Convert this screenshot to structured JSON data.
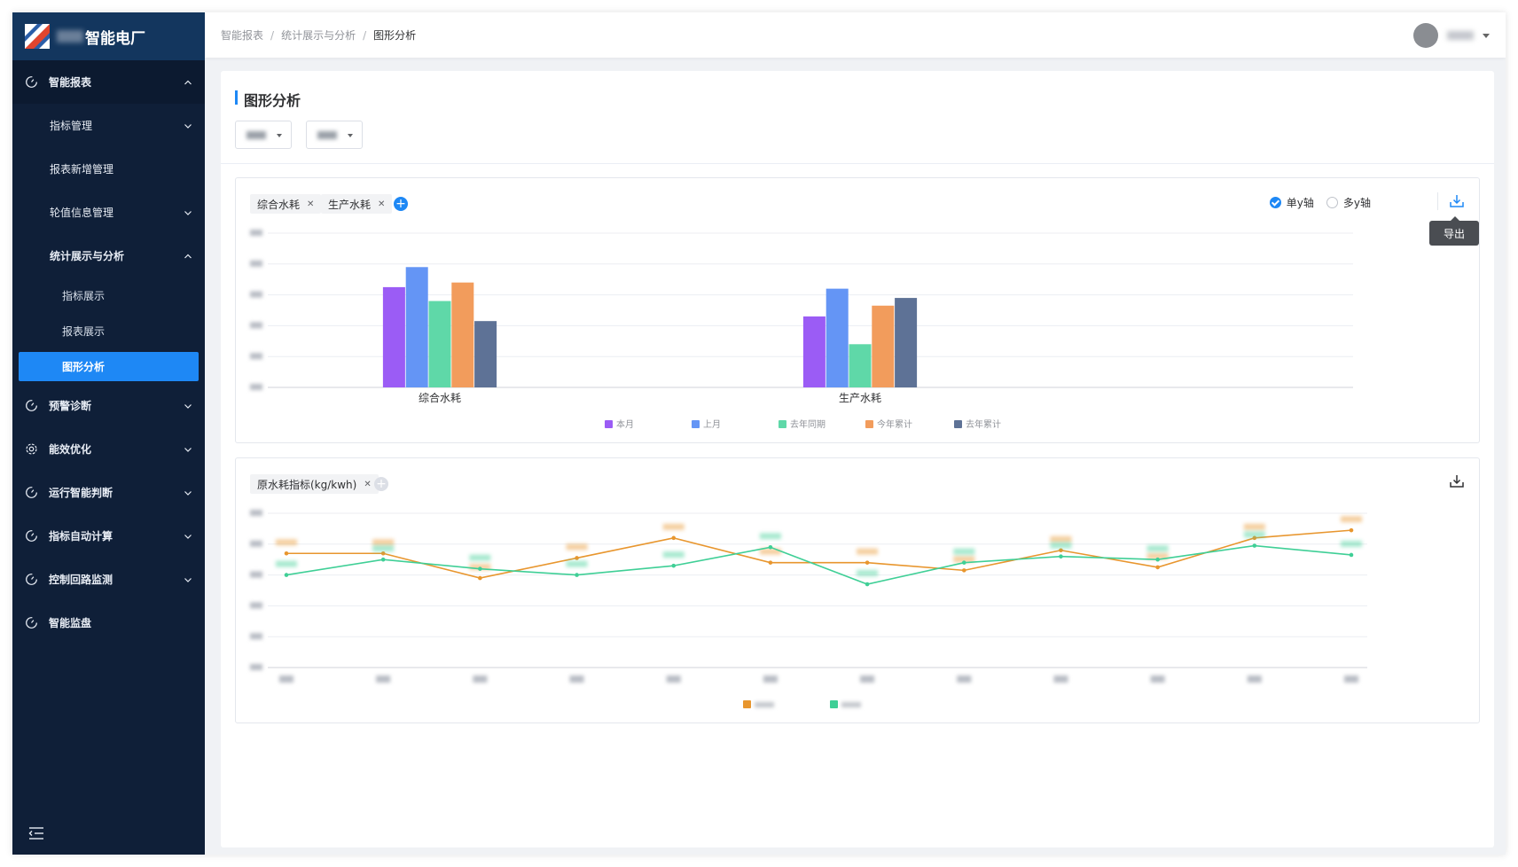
{
  "app": {
    "name": "智能电厂",
    "brand_colors": {
      "sidebar_bg": "#0f1f38",
      "logo_bg": "#13365e",
      "accent": "#1e88f5"
    }
  },
  "sidebar": {
    "groups": [
      {
        "label": "智能报表",
        "icon": "dashboard-gauge-icon",
        "expanded": true
      },
      {
        "label": "预警诊断",
        "icon": "dashboard-gauge-icon",
        "expanded": false
      },
      {
        "label": "能效优化",
        "icon": "gear-icon",
        "expanded": false
      },
      {
        "label": "运行智能判断",
        "icon": "dashboard-gauge-icon",
        "expanded": false
      },
      {
        "label": "指标自动计算",
        "icon": "dashboard-gauge-icon",
        "expanded": false
      },
      {
        "label": "控制回路监测",
        "icon": "dashboard-gauge-icon",
        "expanded": false
      },
      {
        "label": "智能监盘",
        "icon": "dashboard-gauge-icon",
        "expanded": false
      }
    ],
    "sub_items": [
      {
        "label": "指标管理",
        "has_children": true
      },
      {
        "label": "报表新增管理",
        "has_children": false
      },
      {
        "label": "轮值信息管理",
        "has_children": true
      },
      {
        "label": "统计展示与分析",
        "has_children": true,
        "expanded": true
      }
    ],
    "leaf_items": [
      {
        "label": "指标展示",
        "active": false
      },
      {
        "label": "报表展示",
        "active": false
      },
      {
        "label": "图形分析",
        "active": true
      }
    ],
    "collapse_icon": "menu-collapse-icon"
  },
  "header": {
    "breadcrumb": [
      "智能报表",
      "统计展示与分析",
      "图形分析"
    ],
    "user_icon": "avatar"
  },
  "main": {
    "title": "图形分析",
    "filters": [
      {
        "icon": "chevron-down-icon"
      },
      {
        "icon": "chevron-down-icon"
      }
    ],
    "bar_card": {
      "tags": [
        "综合水耗",
        "生产水耗"
      ],
      "axis_mode": {
        "single": "单y轴",
        "multi": "多y轴",
        "selected": "single"
      },
      "export_tooltip": "导出",
      "export_icon": "download-icon"
    },
    "line_card": {
      "tags": [
        "原水耗指标(kg/kwh)"
      ],
      "export_icon": "download-icon"
    }
  },
  "chart_data": [
    {
      "type": "bar",
      "categories": [
        "综合水耗",
        "生产水耗"
      ],
      "series": [
        {
          "name": "本月",
          "color": "#9b5cf5",
          "values": [
            3.25,
            2.3
          ]
        },
        {
          "name": "上月",
          "color": "#6495f5",
          "values": [
            3.9,
            3.2
          ]
        },
        {
          "name": "去年同期",
          "color": "#5fd8a8",
          "values": [
            2.8,
            1.4
          ]
        },
        {
          "name": "今年累计",
          "color": "#f29c5c",
          "values": [
            3.4,
            2.65
          ]
        },
        {
          "name": "去年累计",
          "color": "#5e7296",
          "values": [
            2.15,
            2.9
          ]
        }
      ],
      "ylim": [
        0,
        5
      ],
      "grid": true,
      "legend": "bottom"
    },
    {
      "type": "line",
      "x_count": 12,
      "series": [
        {
          "color": "#e8962e",
          "values": [
            3.7,
            3.7,
            2.9,
            3.55,
            4.2,
            3.4,
            3.4,
            3.15,
            3.8,
            3.25,
            4.2,
            4.45
          ]
        },
        {
          "color": "#3fcf96",
          "values": [
            3.0,
            3.5,
            3.2,
            3.0,
            3.3,
            3.9,
            2.7,
            3.4,
            3.6,
            3.5,
            3.95,
            3.65
          ]
        }
      ],
      "ylim": [
        0,
        5
      ],
      "grid": true,
      "legend": "bottom"
    }
  ]
}
